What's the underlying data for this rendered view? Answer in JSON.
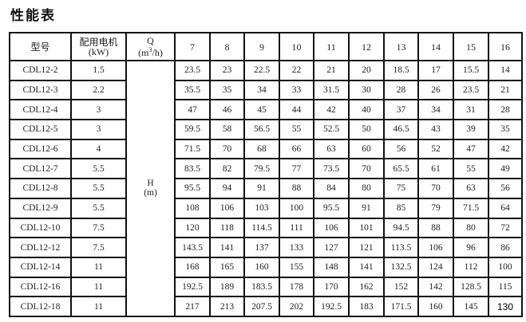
{
  "title": "性能表",
  "header": {
    "model": "型号",
    "motor_line1": "配用电机",
    "motor_line2": "(kW)",
    "q_label": "Q",
    "q_unit_pre": "(m",
    "q_unit_sup": "3",
    "q_unit_post": "/h)",
    "h_label": "H",
    "h_unit": "(m)",
    "flows": [
      "7",
      "8",
      "9",
      "10",
      "11",
      "12",
      "13",
      "14",
      "15",
      "16"
    ]
  },
  "rows": [
    {
      "model": "CDL12-2",
      "kw": "1.5",
      "h": [
        "23.5",
        "23",
        "22.5",
        "22",
        "21",
        "20",
        "18.5",
        "17",
        "15.5",
        "14"
      ]
    },
    {
      "model": "CDL12-3",
      "kw": "2.2",
      "h": [
        "35.5",
        "35",
        "34",
        "33",
        "31.5",
        "30",
        "28",
        "26",
        "23.5",
        "21"
      ]
    },
    {
      "model": "CDL12-4",
      "kw": "3",
      "h": [
        "47",
        "46",
        "45",
        "44",
        "42",
        "40",
        "37",
        "34",
        "31",
        "28"
      ]
    },
    {
      "model": "CDL12-5",
      "kw": "3",
      "h": [
        "59.5",
        "58",
        "56.5",
        "55",
        "52.5",
        "50",
        "46.5",
        "43",
        "39",
        "35"
      ]
    },
    {
      "model": "CDL12-6",
      "kw": "4",
      "h": [
        "71.5",
        "70",
        "68",
        "66",
        "63",
        "60",
        "56",
        "52",
        "47",
        "42"
      ]
    },
    {
      "model": "CDL12-7",
      "kw": "5.5",
      "h": [
        "83.5",
        "82",
        "79.5",
        "77",
        "73.5",
        "70",
        "65.5",
        "61",
        "55",
        "49"
      ]
    },
    {
      "model": "CDL12-8",
      "kw": "5.5",
      "h": [
        "95.5",
        "94",
        "91",
        "88",
        "84",
        "80",
        "75",
        "70",
        "63",
        "56"
      ]
    },
    {
      "model": "CDL12-9",
      "kw": "5.5",
      "h": [
        "108",
        "106",
        "103",
        "100",
        "95.5",
        "91",
        "85",
        "79",
        "71.5",
        "64"
      ]
    },
    {
      "model": "CDL12-10",
      "kw": "7.5",
      "h": [
        "120",
        "118",
        "114.5",
        "111",
        "106",
        "101",
        "94.5",
        "88",
        "80",
        "72"
      ]
    },
    {
      "model": "CDL12-12",
      "kw": "7.5",
      "h": [
        "143.5",
        "141",
        "137",
        "133",
        "127",
        "121",
        "113.5",
        "106",
        "96",
        "86"
      ]
    },
    {
      "model": "CDL12-14",
      "kw": "11",
      "h": [
        "168",
        "165",
        "160",
        "155",
        "148",
        "141",
        "132.5",
        "124",
        "112",
        "100"
      ]
    },
    {
      "model": "CDL12-16",
      "kw": "11",
      "h": [
        "192.5",
        "189",
        "183.5",
        "178",
        "170",
        "162",
        "152",
        "142",
        "128.5",
        "115"
      ]
    },
    {
      "model": "CDL12-18",
      "kw": "11",
      "h": [
        "217",
        "213",
        "207.5",
        "202",
        "192.5",
        "183",
        "171.5",
        "160",
        "145",
        "130"
      ]
    }
  ]
}
